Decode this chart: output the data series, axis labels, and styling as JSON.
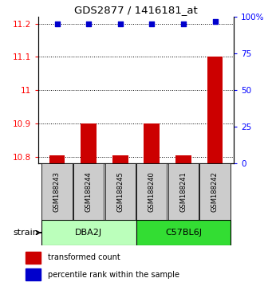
{
  "title": "GDS2877 / 1416181_at",
  "samples": [
    "GSM188243",
    "GSM188244",
    "GSM188245",
    "GSM188240",
    "GSM188241",
    "GSM188242"
  ],
  "red_values": [
    10.805,
    10.9,
    10.805,
    10.9,
    10.805,
    11.1
  ],
  "blue_values": [
    95,
    95,
    95,
    95,
    95,
    97
  ],
  "ylim_left": [
    10.78,
    11.22
  ],
  "ylim_right": [
    0,
    100
  ],
  "yticks_left": [
    10.8,
    10.9,
    11.0,
    11.1,
    11.2
  ],
  "ytick_labels_left": [
    "10.8",
    "10.9",
    "11",
    "11.1",
    "11.2"
  ],
  "yticks_right": [
    0,
    25,
    50,
    75,
    100
  ],
  "ytick_labels_right": [
    "0",
    "25",
    "50",
    "75",
    "100%"
  ],
  "bar_color": "#cc0000",
  "dot_color": "#0000cc",
  "bar_base": 10.78,
  "sample_box_color": "#cccccc",
  "group1_box_color": "#bbffbb",
  "group2_box_color": "#33dd33",
  "group_spans": [
    [
      0,
      2,
      "DBA2J"
    ],
    [
      3,
      5,
      "C57BL6J"
    ]
  ],
  "legend_red_label": "transformed count",
  "legend_blue_label": "percentile rank within the sample",
  "strain_label": "strain"
}
